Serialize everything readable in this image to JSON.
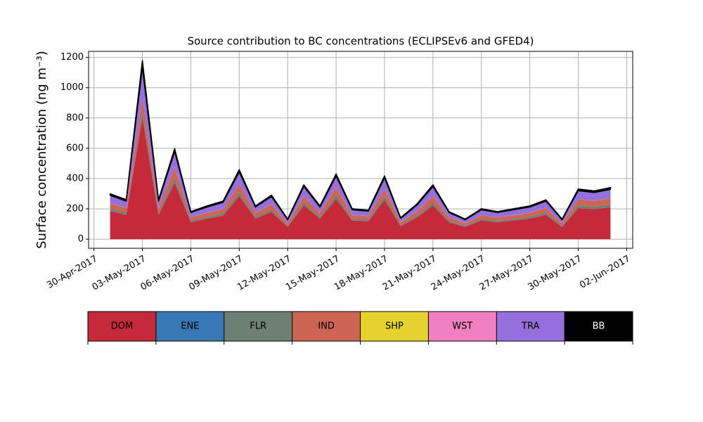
{
  "chart_data": {
    "type": "stacked_area",
    "title": "Source contribution to BC concentrations (ECLIPSEv6 and GFED4)",
    "y_label": "Surface concentration (ng m⁻³)",
    "x": [
      "2017-05-01",
      "2017-05-02",
      "2017-05-03",
      "2017-05-04",
      "2017-05-05",
      "2017-05-06",
      "2017-05-07",
      "2017-05-08",
      "2017-05-09",
      "2017-05-10",
      "2017-05-11",
      "2017-05-12",
      "2017-05-13",
      "2017-05-14",
      "2017-05-15",
      "2017-05-16",
      "2017-05-17",
      "2017-05-18",
      "2017-05-19",
      "2017-05-20",
      "2017-05-21",
      "2017-05-22",
      "2017-05-23",
      "2017-05-24",
      "2017-05-25",
      "2017-05-26",
      "2017-05-27",
      "2017-05-28",
      "2017-05-29",
      "2017-05-30",
      "2017-05-31",
      "2017-06-01"
    ],
    "series": [
      {
        "name": "DOM",
        "color": "#c52a3a",
        "values": [
          186,
          161,
          800,
          161,
          372,
          112,
          136,
          155,
          285,
          136,
          180,
          81,
          223,
          136,
          267,
          124,
          118,
          260,
          87,
          143,
          223,
          112,
          81,
          124,
          112,
          124,
          136,
          161,
          81,
          205,
          198,
          211
        ]
      },
      {
        "name": "ENE",
        "color": "#3878b4",
        "values": [
          1,
          1,
          1,
          1,
          1,
          1,
          1,
          1,
          1,
          1,
          1,
          1,
          1,
          1,
          1,
          1,
          1,
          1,
          1,
          1,
          1,
          1,
          1,
          1,
          1,
          1,
          1,
          1,
          1,
          1,
          1,
          1
        ]
      },
      {
        "name": "FLR",
        "color": "#6e8070",
        "values": [
          15,
          13,
          40,
          13,
          30,
          9,
          11,
          13,
          23,
          11,
          15,
          7,
          18,
          11,
          22,
          10,
          10,
          21,
          7,
          12,
          18,
          9,
          7,
          10,
          9,
          10,
          11,
          13,
          7,
          17,
          16,
          17
        ]
      },
      {
        "name": "IND",
        "color": "#cd6555",
        "values": [
          36,
          31,
          90,
          31,
          72,
          22,
          26,
          30,
          55,
          26,
          35,
          16,
          43,
          26,
          52,
          24,
          23,
          50,
          17,
          28,
          43,
          22,
          16,
          24,
          22,
          24,
          26,
          31,
          16,
          40,
          38,
          41
        ]
      },
      {
        "name": "SHP",
        "color": "#e6d22e",
        "values": [
          0,
          0,
          0,
          0,
          0,
          0,
          0,
          0,
          0,
          0,
          0,
          0,
          0,
          0,
          0,
          0,
          0,
          0,
          0,
          0,
          0,
          0,
          0,
          0,
          0,
          0,
          0,
          0,
          0,
          0,
          0,
          0
        ]
      },
      {
        "name": "WST",
        "color": "#f080c0",
        "values": [
          1,
          1,
          1,
          1,
          1,
          1,
          1,
          1,
          1,
          1,
          1,
          1,
          1,
          1,
          1,
          1,
          1,
          1,
          1,
          1,
          1,
          1,
          1,
          1,
          1,
          1,
          1,
          1,
          1,
          1,
          1,
          1
        ]
      },
      {
        "name": "TRA",
        "color": "#9370db",
        "values": [
          51,
          44,
          200,
          44,
          102,
          31,
          37,
          43,
          78,
          37,
          49,
          22,
          61,
          37,
          73,
          34,
          32,
          71,
          24,
          39,
          61,
          31,
          22,
          34,
          31,
          34,
          37,
          44,
          22,
          56,
          54,
          58
        ]
      },
      {
        "name": "BB",
        "color": "#000000",
        "values": [
          10,
          10,
          48,
          10,
          20,
          6,
          8,
          9,
          16,
          8,
          10,
          5,
          12,
          8,
          15,
          7,
          7,
          14,
          5,
          8,
          12,
          6,
          5,
          7,
          6,
          7,
          8,
          9,
          5,
          11,
          11,
          12
        ]
      }
    ],
    "xlim": [
      "2017-04-29T16:00",
      "2017-06-02T09:00"
    ],
    "xticks": [
      {
        "value": "2017-04-30",
        "label": "30-Apr-2017"
      },
      {
        "value": "2017-05-03",
        "label": "03-May-2017"
      },
      {
        "value": "2017-05-06",
        "label": "06-May-2017"
      },
      {
        "value": "2017-05-09",
        "label": "09-May-2017"
      },
      {
        "value": "2017-05-12",
        "label": "12-May-2017"
      },
      {
        "value": "2017-05-15",
        "label": "15-May-2017"
      },
      {
        "value": "2017-05-18",
        "label": "18-May-2017"
      },
      {
        "value": "2017-05-21",
        "label": "21-May-2017"
      },
      {
        "value": "2017-05-24",
        "label": "24-May-2017"
      },
      {
        "value": "2017-05-27",
        "label": "27-May-2017"
      },
      {
        "value": "2017-05-30",
        "label": "30-May-2017"
      },
      {
        "value": "2017-06-02",
        "label": "02-Jun-2017"
      }
    ],
    "ylim": [
      -60,
      1240
    ],
    "yticks": [
      0,
      200,
      400,
      600,
      800,
      1000,
      1200
    ],
    "grid": true,
    "legend": "bottom"
  }
}
